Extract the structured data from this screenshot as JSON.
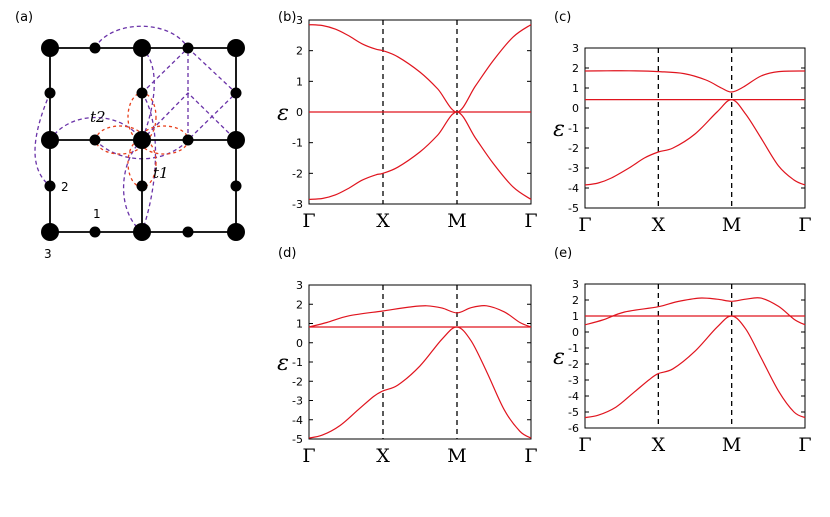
{
  "panel_a": {
    "label": "(a)",
    "hop_labels": [
      "t2",
      "t1"
    ],
    "site_labels": [
      "1",
      "2",
      "3"
    ],
    "colors": {
      "lattice": "#000000",
      "t1": "#e8401c",
      "t2": "#6a33a8"
    }
  },
  "chart_data": [
    {
      "type": "line",
      "label": "(b)",
      "ylabel": "ε",
      "ylim": [
        -3,
        3
      ],
      "yticks": [
        -3,
        -2,
        -1,
        0,
        1,
        2,
        3
      ],
      "ktick_labels": [
        "Γ",
        "X",
        "M",
        "Γ"
      ],
      "vlines_at": [
        "X",
        "M"
      ],
      "series": [
        {
          "values": [
            [
              0,
              2.85
            ],
            [
              0.06,
              2.82
            ],
            [
              0.12,
              2.7
            ],
            [
              0.18,
              2.48
            ],
            [
              0.24,
              2.22
            ],
            [
              0.3,
              2.05
            ],
            [
              0.333,
              2.0
            ],
            [
              0.4,
              1.8
            ],
            [
              0.5,
              1.3
            ],
            [
              0.58,
              0.75
            ],
            [
              0.667,
              0.0
            ],
            [
              0.75,
              0.85
            ],
            [
              0.83,
              1.68
            ],
            [
              0.92,
              2.45
            ],
            [
              1.0,
              2.85
            ]
          ]
        },
        {
          "values": [
            [
              0,
              0
            ],
            [
              1,
              0
            ]
          ]
        },
        {
          "values": [
            [
              0,
              -2.85
            ],
            [
              0.06,
              -2.82
            ],
            [
              0.12,
              -2.7
            ],
            [
              0.18,
              -2.48
            ],
            [
              0.24,
              -2.22
            ],
            [
              0.3,
              -2.05
            ],
            [
              0.333,
              -2.0
            ],
            [
              0.4,
              -1.8
            ],
            [
              0.5,
              -1.3
            ],
            [
              0.58,
              -0.75
            ],
            [
              0.667,
              0.0
            ],
            [
              0.75,
              -0.85
            ],
            [
              0.83,
              -1.68
            ],
            [
              0.92,
              -2.45
            ],
            [
              1.0,
              -2.85
            ]
          ]
        }
      ]
    },
    {
      "type": "line",
      "label": "(c)",
      "ylabel": "ε",
      "ylim": [
        -5,
        3
      ],
      "yticks": [
        -5,
        -4,
        -3,
        -2,
        -1,
        0,
        1,
        2,
        3
      ],
      "ktick_labels": [
        "Γ",
        "X",
        "M",
        "Γ"
      ],
      "vlines_at": [
        "X",
        "M"
      ],
      "series": [
        {
          "values": [
            [
              0,
              1.85
            ],
            [
              0.1,
              1.86
            ],
            [
              0.2,
              1.86
            ],
            [
              0.333,
              1.82
            ],
            [
              0.45,
              1.72
            ],
            [
              0.55,
              1.4
            ],
            [
              0.62,
              1.0
            ],
            [
              0.667,
              0.8
            ],
            [
              0.72,
              1.05
            ],
            [
              0.8,
              1.6
            ],
            [
              0.88,
              1.82
            ],
            [
              1.0,
              1.85
            ]
          ]
        },
        {
          "values": [
            [
              0,
              0.42
            ],
            [
              1,
              0.42
            ]
          ]
        },
        {
          "values": [
            [
              0,
              -3.85
            ],
            [
              0.06,
              -3.75
            ],
            [
              0.12,
              -3.5
            ],
            [
              0.2,
              -3.0
            ],
            [
              0.27,
              -2.5
            ],
            [
              0.333,
              -2.2
            ],
            [
              0.4,
              -2.0
            ],
            [
              0.5,
              -1.3
            ],
            [
              0.6,
              -0.2
            ],
            [
              0.667,
              0.42
            ],
            [
              0.73,
              -0.3
            ],
            [
              0.8,
              -1.5
            ],
            [
              0.88,
              -2.9
            ],
            [
              0.95,
              -3.6
            ],
            [
              1.0,
              -3.85
            ]
          ]
        }
      ]
    },
    {
      "type": "line",
      "label": "(d)",
      "ylabel": "ε",
      "ylim": [
        -5,
        3
      ],
      "yticks": [
        -5,
        -4,
        -3,
        -2,
        -1,
        0,
        1,
        2,
        3
      ],
      "ktick_labels": [
        "Γ",
        "X",
        "M",
        "Γ"
      ],
      "vlines_at": [
        "X",
        "M"
      ],
      "series": [
        {
          "values": [
            [
              0,
              0.82
            ],
            [
              0.08,
              1.05
            ],
            [
              0.18,
              1.4
            ],
            [
              0.333,
              1.65
            ],
            [
              0.45,
              1.85
            ],
            [
              0.53,
              1.92
            ],
            [
              0.6,
              1.8
            ],
            [
              0.667,
              1.55
            ],
            [
              0.73,
              1.82
            ],
            [
              0.8,
              1.92
            ],
            [
              0.88,
              1.6
            ],
            [
              0.95,
              1.05
            ],
            [
              1.0,
              0.82
            ]
          ]
        },
        {
          "values": [
            [
              0,
              0.82
            ],
            [
              1,
              0.82
            ]
          ]
        },
        {
          "values": [
            [
              0,
              -4.95
            ],
            [
              0.06,
              -4.8
            ],
            [
              0.14,
              -4.3
            ],
            [
              0.22,
              -3.5
            ],
            [
              0.29,
              -2.8
            ],
            [
              0.333,
              -2.5
            ],
            [
              0.4,
              -2.2
            ],
            [
              0.5,
              -1.2
            ],
            [
              0.6,
              0.2
            ],
            [
              0.667,
              0.82
            ],
            [
              0.73,
              0.1
            ],
            [
              0.8,
              -1.5
            ],
            [
              0.88,
              -3.5
            ],
            [
              0.95,
              -4.6
            ],
            [
              1.0,
              -4.95
            ]
          ]
        }
      ]
    },
    {
      "type": "line",
      "label": "(e)",
      "ylabel": "ε",
      "ylim": [
        -6,
        3
      ],
      "yticks": [
        -6,
        -5,
        -4,
        -3,
        -2,
        -1,
        0,
        1,
        2,
        3
      ],
      "ktick_labels": [
        "Γ",
        "X",
        "M",
        "Γ"
      ],
      "vlines_at": [
        "X",
        "M"
      ],
      "series": [
        {
          "values": [
            [
              0,
              0.45
            ],
            [
              0.08,
              0.75
            ],
            [
              0.18,
              1.25
            ],
            [
              0.333,
              1.58
            ],
            [
              0.42,
              1.9
            ],
            [
              0.52,
              2.12
            ],
            [
              0.6,
              2.05
            ],
            [
              0.667,
              1.92
            ],
            [
              0.73,
              2.05
            ],
            [
              0.8,
              2.12
            ],
            [
              0.88,
              1.6
            ],
            [
              0.95,
              0.8
            ],
            [
              1.0,
              0.45
            ]
          ]
        },
        {
          "values": [
            [
              0,
              1.0
            ],
            [
              1,
              1.0
            ]
          ]
        },
        {
          "values": [
            [
              0,
              -5.35
            ],
            [
              0.06,
              -5.2
            ],
            [
              0.14,
              -4.7
            ],
            [
              0.22,
              -3.8
            ],
            [
              0.29,
              -3.0
            ],
            [
              0.333,
              -2.6
            ],
            [
              0.4,
              -2.3
            ],
            [
              0.5,
              -1.2
            ],
            [
              0.6,
              0.3
            ],
            [
              0.667,
              1.0
            ],
            [
              0.73,
              0.2
            ],
            [
              0.8,
              -1.6
            ],
            [
              0.88,
              -3.7
            ],
            [
              0.95,
              -5.0
            ],
            [
              1.0,
              -5.35
            ]
          ]
        }
      ]
    }
  ]
}
